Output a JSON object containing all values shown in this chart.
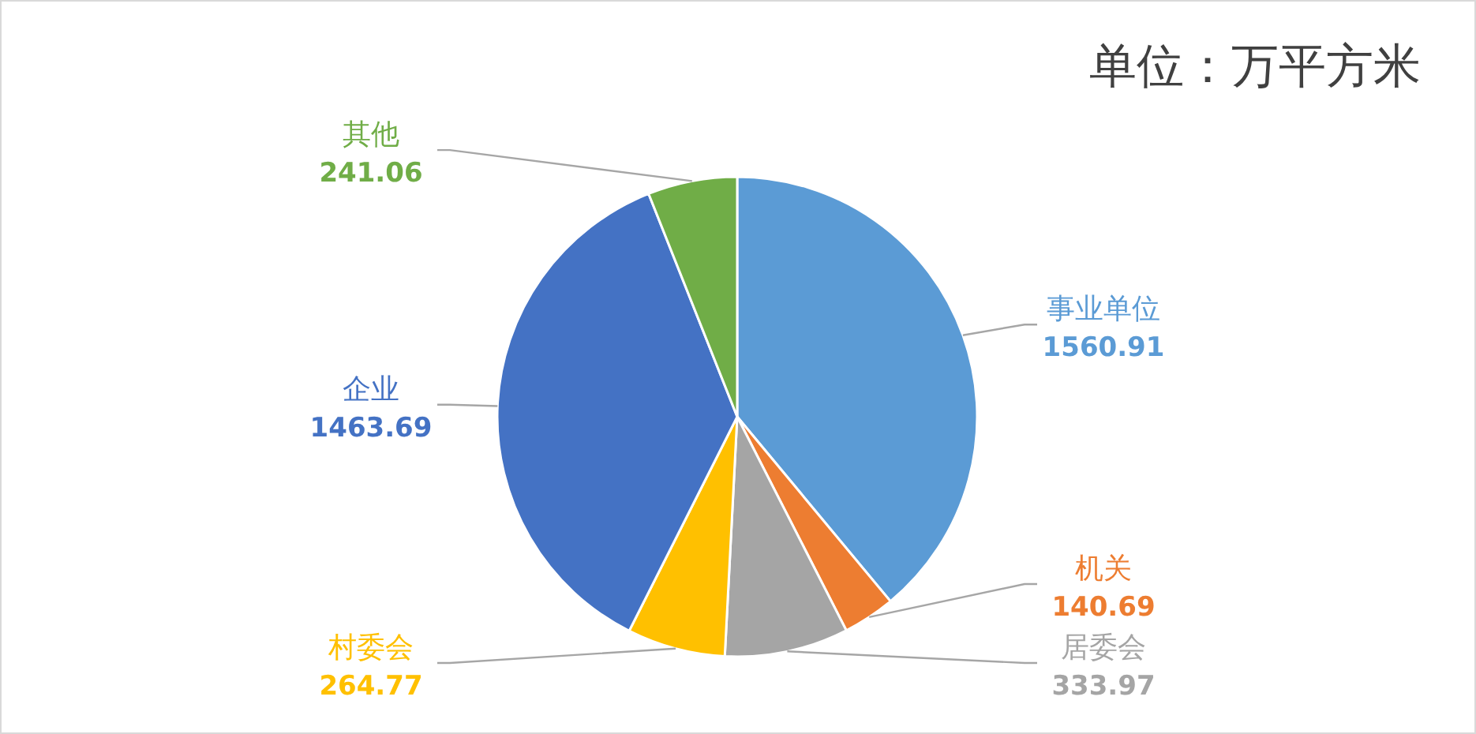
{
  "chart_data": {
    "type": "pie",
    "title": "单位：万平方米",
    "categories": [
      "事业单位",
      "机关",
      "居委会",
      "村委会",
      "企业",
      "其他"
    ],
    "values": [
      1560.91,
      140.69,
      333.97,
      264.77,
      1463.69,
      241.06
    ],
    "colors": [
      "#5b9bd5",
      "#ed7d31",
      "#a5a5a5",
      "#ffc000",
      "#4472c4",
      "#70ad47"
    ],
    "data_labels": true
  }
}
